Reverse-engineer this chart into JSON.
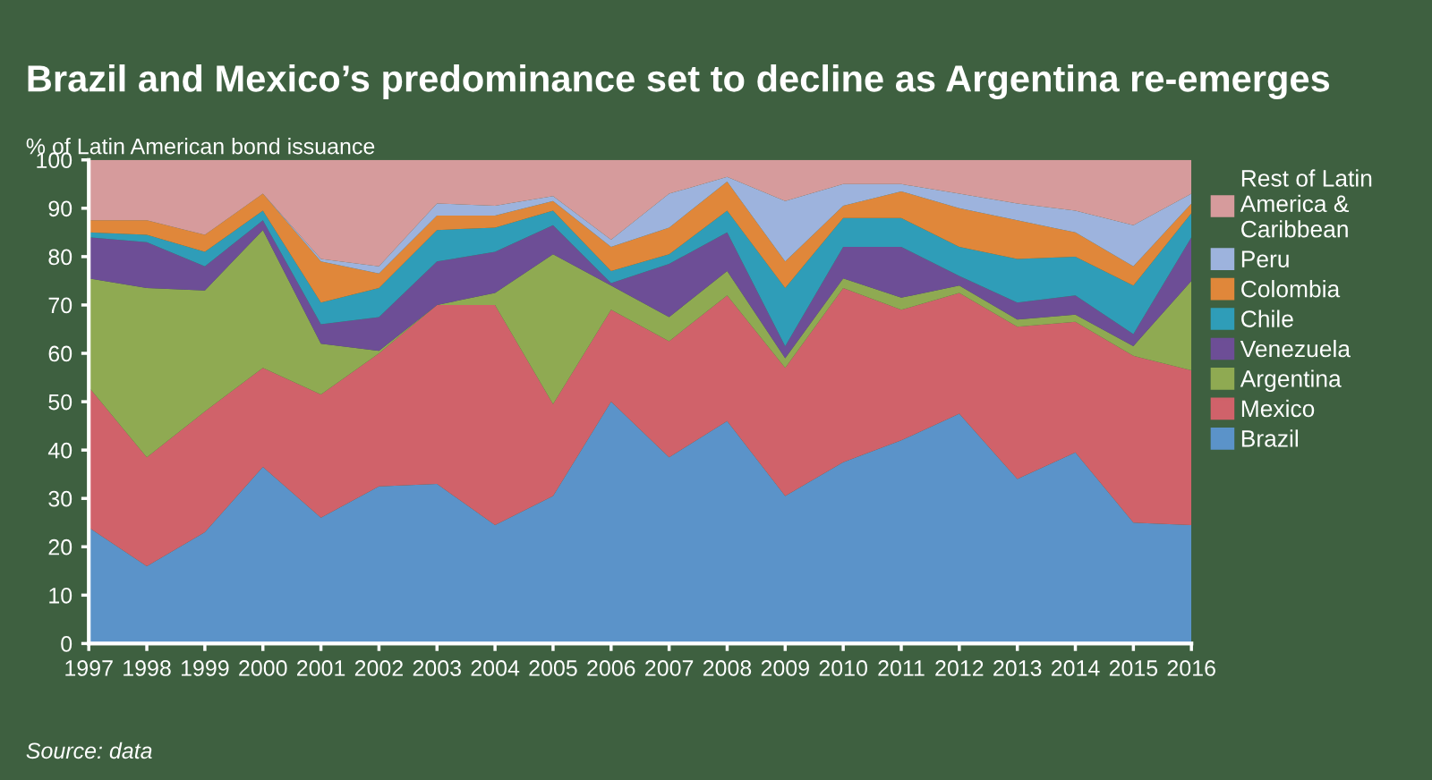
{
  "chart_data": {
    "type": "area",
    "stacked": true,
    "title": "Brazil and Mexico’s predominance set to decline as Argentina re-emerges",
    "ylabel": "% of Latin American bond issuance",
    "annotations": [
      "Source: data"
    ],
    "x": [
      1997,
      1998,
      1999,
      2000,
      2001,
      2002,
      2003,
      2004,
      2005,
      2006,
      2007,
      2008,
      2009,
      2010,
      2011,
      2012,
      2013,
      2014,
      2015,
      2016
    ],
    "xlim": [
      1997,
      2016
    ],
    "xticks": [
      1997,
      1998,
      1999,
      2000,
      2001,
      2002,
      2003,
      2004,
      2005,
      2006,
      2007,
      2008,
      2009,
      2010,
      2011,
      2012,
      2013,
      2014,
      2015,
      2016
    ],
    "ylim": [
      0,
      100
    ],
    "yticks": [
      0,
      10,
      20,
      30,
      40,
      50,
      60,
      70,
      80,
      90,
      100
    ],
    "grid": false,
    "legend": "right",
    "series": [
      {
        "name": "Brazil",
        "color": "#5b93c9",
        "values": [
          24,
          16,
          23,
          36.5,
          26,
          32.5,
          33,
          24.5,
          30.5,
          50,
          38.5,
          46,
          30.5,
          37.5,
          42,
          47.5,
          34,
          39.5,
          25,
          24.5
        ]
      },
      {
        "name": "Mexico",
        "color": "#d0626a",
        "values": [
          29,
          22.5,
          25,
          20.5,
          25.5,
          27.5,
          37,
          45.5,
          19,
          19,
          24,
          26,
          26.5,
          36,
          27,
          25,
          31.5,
          27,
          34.5,
          32
        ]
      },
      {
        "name": "Argentina",
        "color": "#8faa52",
        "values": [
          22.5,
          35,
          25,
          28.5,
          10.5,
          0.5,
          0,
          2.5,
          31,
          5,
          5,
          5,
          2,
          2,
          2.5,
          1.5,
          1.5,
          1.5,
          2,
          18.5
        ]
      },
      {
        "name": "Venezuela",
        "color": "#6d4e96",
        "values": [
          8.5,
          9.5,
          5,
          2,
          4,
          7,
          9,
          8.5,
          6,
          0.5,
          11,
          8,
          2.5,
          6.5,
          10.5,
          2,
          3.5,
          4,
          2.5,
          9
        ]
      },
      {
        "name": "Chile",
        "color": "#2f9db8",
        "values": [
          1,
          1.5,
          3,
          2,
          4.5,
          6,
          6.5,
          5,
          3,
          2.5,
          2,
          4.5,
          12,
          6,
          6,
          6,
          9,
          8,
          10,
          5
        ]
      },
      {
        "name": "Colombia",
        "color": "#e0873a",
        "values": [
          2.5,
          3,
          3.5,
          3.5,
          8.5,
          3,
          3,
          2.5,
          2,
          5,
          5.5,
          6,
          5.5,
          2.5,
          5.5,
          8,
          8,
          5,
          4,
          2
        ]
      },
      {
        "name": "Peru",
        "color": "#9db3dd",
        "values": [
          0,
          0,
          0,
          0,
          0.5,
          1.5,
          2.5,
          2,
          1,
          1.5,
          7,
          1,
          12.5,
          4.5,
          1.5,
          3,
          3.5,
          4.5,
          8.5,
          2
        ]
      },
      {
        "name": "Rest of Latin\nAmerica &\nCaribbean",
        "color": "#d69b9c",
        "values": [
          12.5,
          12.5,
          15.5,
          7,
          20.5,
          22,
          9,
          9.5,
          7.5,
          16.5,
          7,
          3.5,
          8.5,
          5,
          5,
          7,
          9,
          10.5,
          13.5,
          7
        ]
      }
    ]
  }
}
